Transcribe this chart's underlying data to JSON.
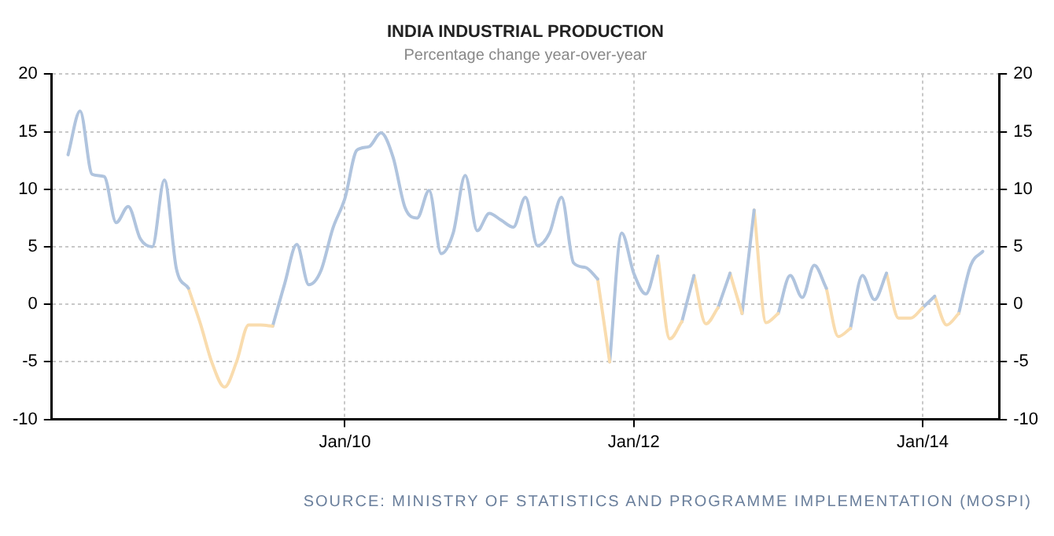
{
  "chart_data": {
    "type": "line",
    "title": "INDIA INDUSTRIAL PRODUCTION",
    "subtitle": "Percentage change year-over-year",
    "series": [
      {
        "color": "#b0c4de",
        "x": [
          "2008-02",
          "2008-03",
          "2008-04",
          "2008-05",
          "2008-06",
          "2008-07",
          "2008-08",
          "2008-09",
          "2008-10",
          "2008-11",
          "2008-12"
        ],
        "values": [
          13.0,
          16.8,
          11.3,
          11.1,
          7.1,
          8.5,
          5.7,
          5.0,
          10.8,
          3.1,
          1.4
        ]
      },
      {
        "color": "#f9dcae",
        "x": [
          "2008-12",
          "2009-01",
          "2009-02",
          "2009-03",
          "2009-04",
          "2009-05",
          "2009-06",
          "2009-07"
        ],
        "values": [
          1.4,
          -1.7,
          -5.2,
          -7.2,
          -5.0,
          -1.8,
          -1.8,
          -1.9
        ]
      },
      {
        "color": "#b0c4de",
        "x": [
          "2009-07",
          "2009-08",
          "2009-09",
          "2009-10",
          "2009-11",
          "2009-12",
          "2010-01",
          "2010-02",
          "2010-03",
          "2010-04",
          "2010-05",
          "2010-06",
          "2010-07",
          "2010-08",
          "2010-09",
          "2010-10",
          "2010-11",
          "2010-12",
          "2011-01",
          "2011-02",
          "2011-03",
          "2011-04",
          "2011-05",
          "2011-06",
          "2011-07",
          "2011-08",
          "2011-09",
          "2011-10"
        ],
        "values": [
          -1.9,
          1.8,
          5.2,
          1.7,
          2.9,
          6.6,
          9.2,
          13.4,
          13.7,
          14.9,
          12.8,
          8.4,
          7.5,
          9.9,
          4.4,
          6.2,
          11.2,
          6.4,
          7.9,
          7.3,
          6.7,
          9.3,
          5.1,
          6.2,
          9.3,
          3.6,
          3.2,
          2.2
        ]
      },
      {
        "color": "#f9dcae",
        "x": [
          "2011-10",
          "2011-11"
        ],
        "values": [
          2.2,
          -5.0
        ]
      },
      {
        "color": "#b0c4de",
        "x": [
          "2011-11",
          "2011-12",
          "2012-01",
          "2012-02",
          "2012-03"
        ],
        "values": [
          -5.0,
          6.2,
          2.7,
          0.9,
          4.2
        ]
      },
      {
        "color": "#f9dcae",
        "x": [
          "2012-03",
          "2012-04",
          "2012-05"
        ],
        "values": [
          4.2,
          -3.0,
          -1.5
        ]
      },
      {
        "color": "#b0c4de",
        "x": [
          "2012-05",
          "2012-06"
        ],
        "values": [
          -1.5,
          2.5
        ]
      },
      {
        "color": "#f9dcae",
        "x": [
          "2012-06",
          "2012-07",
          "2012-08"
        ],
        "values": [
          2.5,
          -1.7,
          -0.3
        ]
      },
      {
        "color": "#b0c4de",
        "x": [
          "2012-08",
          "2012-09"
        ],
        "values": [
          -0.3,
          2.7
        ]
      },
      {
        "color": "#f9dcae",
        "x": [
          "2012-09",
          "2012-10"
        ],
        "values": [
          2.7,
          -0.8
        ]
      },
      {
        "color": "#b0c4de",
        "x": [
          "2012-10",
          "2012-11"
        ],
        "values": [
          -0.8,
          8.2
        ]
      },
      {
        "color": "#f9dcae",
        "x": [
          "2012-11",
          "2012-12",
          "2013-01"
        ],
        "values": [
          8.2,
          -1.6,
          -0.8
        ]
      },
      {
        "color": "#b0c4de",
        "x": [
          "2013-01",
          "2013-02",
          "2013-03",
          "2013-04",
          "2013-05"
        ],
        "values": [
          -0.8,
          2.5,
          0.6,
          3.4,
          1.4
        ]
      },
      {
        "color": "#f9dcae",
        "x": [
          "2013-05",
          "2013-06",
          "2013-07"
        ],
        "values": [
          1.4,
          -2.8,
          -2.1
        ]
      },
      {
        "color": "#b0c4de",
        "x": [
          "2013-07",
          "2013-08",
          "2013-09",
          "2013-10"
        ],
        "values": [
          -2.1,
          2.5,
          0.4,
          2.7
        ]
      },
      {
        "color": "#f9dcae",
        "x": [
          "2013-10",
          "2013-11",
          "2013-12",
          "2014-01"
        ],
        "values": [
          2.7,
          -1.2,
          -1.2,
          -0.3
        ]
      },
      {
        "color": "#b0c4de",
        "x": [
          "2014-01",
          "2014-02"
        ],
        "values": [
          -0.3,
          0.7
        ]
      },
      {
        "color": "#f9dcae",
        "x": [
          "2014-02",
          "2014-03",
          "2014-04"
        ],
        "values": [
          0.7,
          -1.8,
          -0.8
        ]
      },
      {
        "color": "#b0c4de",
        "x": [
          "2014-04",
          "2014-05",
          "2014-06"
        ],
        "values": [
          -0.8,
          3.4,
          4.6
        ]
      }
    ],
    "xlim": [
      "2007-12-21",
      "2014-07-12"
    ],
    "xticks": [
      {
        "value": "2010-01",
        "label": "Jan/10"
      },
      {
        "value": "2012-01",
        "label": "Jan/12"
      },
      {
        "value": "2014-01",
        "label": "Jan/14"
      }
    ],
    "ylim": [
      -10,
      20
    ],
    "yticks": [
      -10,
      -5,
      0,
      5,
      10,
      15,
      20
    ],
    "y2lim": [
      -10,
      20
    ],
    "y2ticks": [
      -10,
      -5,
      0,
      5,
      10,
      15,
      20
    ],
    "grid": true,
    "legend": false,
    "marker": "none",
    "line_style": "solid",
    "annotations": [
      "SOURCE: MINISTRY OF STATISTICS AND PROGRAMME IMPLEMENTATION (MOSPI)"
    ]
  }
}
